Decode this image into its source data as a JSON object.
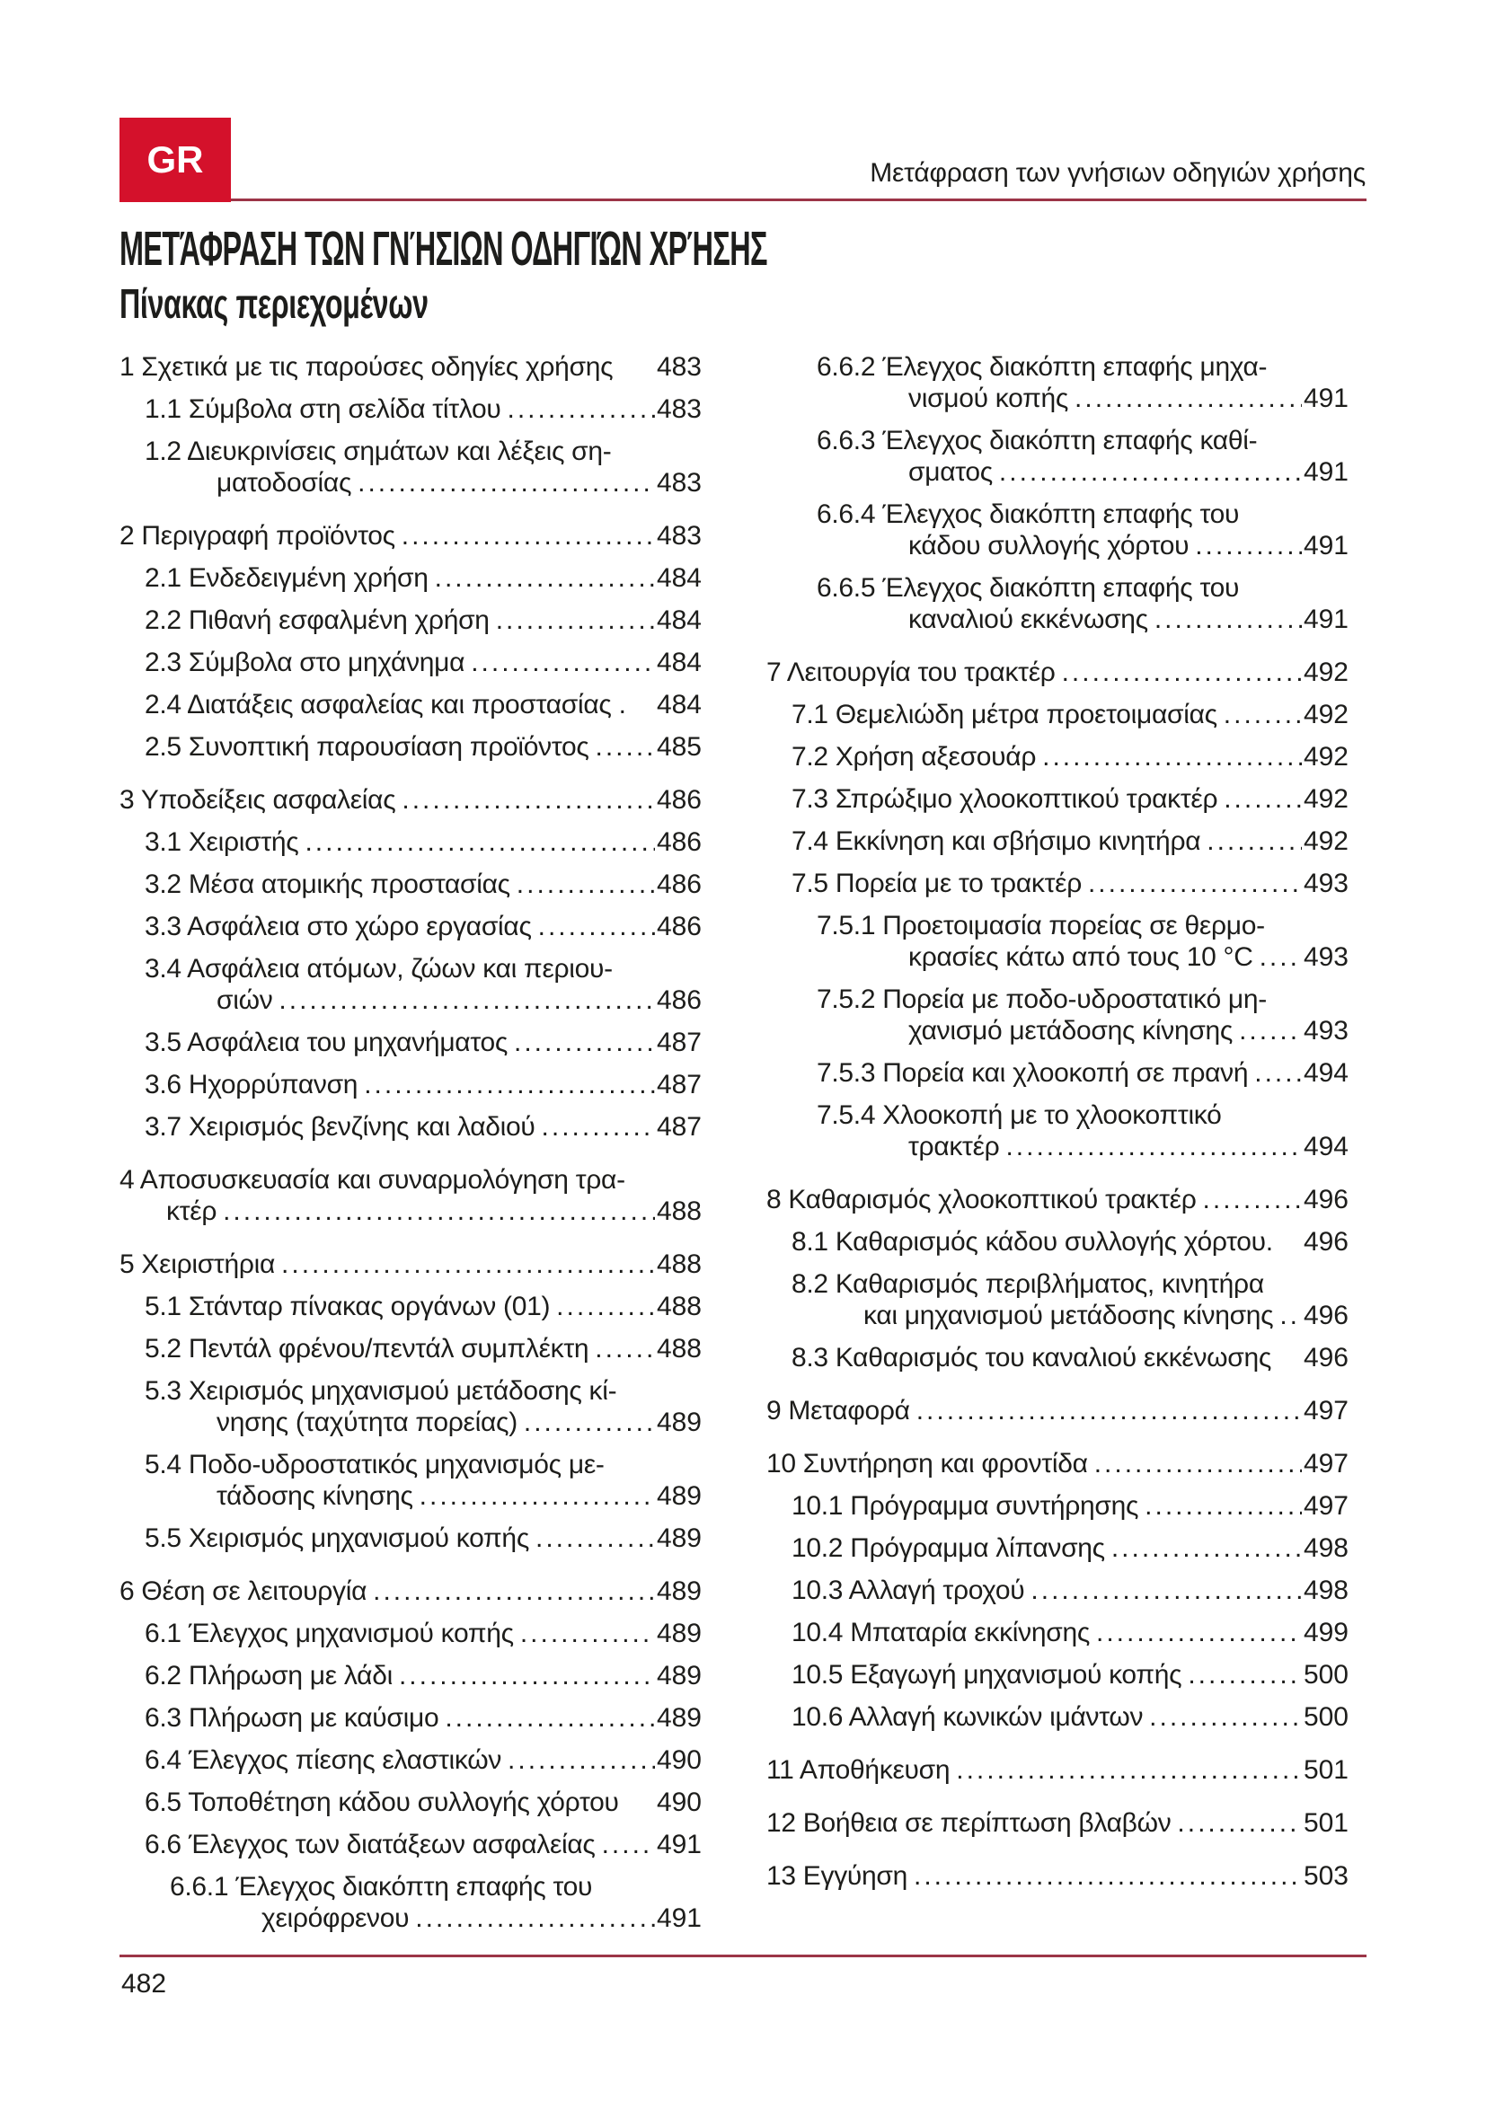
{
  "page": {
    "lang_badge": "GR",
    "header_right": "Μετάφραση των γνήσιων οδηγιών χρήσης",
    "title": "ΜΕΤΆΦΡΑΣΗ ΤΩΝ ΓΝΉΣΙΩΝ ΟΔΗΓΙΏΝ ΧΡΉΣΗΣ",
    "subtitle": "Πίνακας περιεχομένων",
    "page_number": "482",
    "accent_color": "#d4112b",
    "rule_color": "#9c3547"
  },
  "toc": {
    "left": [
      {
        "level": 1,
        "chapter": true,
        "lines": [
          {
            "text": "1 Σχετικά με τις παρούσες οδηγίες χρήσης",
            "page": "483",
            "leader": false
          }
        ]
      },
      {
        "level": 2,
        "lines": [
          {
            "text": "1.1 Σύμβολα στη σελίδα τίτλου",
            "page": "483",
            "leader": true
          }
        ]
      },
      {
        "level": 2,
        "lines": [
          {
            "text": "1.2 Διευκρινίσεις σημάτων και λέξεις ση-"
          },
          {
            "text": "ματοδοσίας",
            "page": "483",
            "leader": true
          }
        ]
      },
      {
        "level": 1,
        "chapter": true,
        "lines": [
          {
            "text": "2 Περιγραφή προϊόντος",
            "page": "483",
            "leader": true
          }
        ]
      },
      {
        "level": 2,
        "lines": [
          {
            "text": "2.1 Ενδεδειγμένη χρήση",
            "page": "484",
            "leader": true
          }
        ]
      },
      {
        "level": 2,
        "lines": [
          {
            "text": "2.2 Πιθανή εσφαλμένη χρήση",
            "page": "484",
            "leader": true
          }
        ]
      },
      {
        "level": 2,
        "lines": [
          {
            "text": "2.3 Σύμβολα στο μηχάνημα",
            "page": "484",
            "leader": true
          }
        ]
      },
      {
        "level": 2,
        "lines": [
          {
            "text": "2.4 Διατάξεις ασφαλείας και προστασίας .",
            "page": "484",
            "leader": false
          }
        ]
      },
      {
        "level": 2,
        "lines": [
          {
            "text": "2.5 Συνοπτική παρουσίαση προϊόντος",
            "page": "485",
            "leader": true
          }
        ]
      },
      {
        "level": 1,
        "chapter": true,
        "lines": [
          {
            "text": "3 Υποδείξεις ασφαλείας",
            "page": "486",
            "leader": true
          }
        ]
      },
      {
        "level": 2,
        "lines": [
          {
            "text": "3.1 Χειριστής",
            "page": "486",
            "leader": true
          }
        ]
      },
      {
        "level": 2,
        "lines": [
          {
            "text": "3.2 Μέσα ατομικής προστασίας",
            "page": "486",
            "leader": true
          }
        ]
      },
      {
        "level": 2,
        "lines": [
          {
            "text": "3.3 Ασφάλεια στο χώρο εργασίας",
            "page": "486",
            "leader": true
          }
        ]
      },
      {
        "level": 2,
        "lines": [
          {
            "text": "3.4 Ασφάλεια ατόμων, ζώων και περιου-"
          },
          {
            "text": "σιών",
            "page": "486",
            "leader": true
          }
        ]
      },
      {
        "level": 2,
        "lines": [
          {
            "text": "3.5 Ασφάλεια του μηχανήματος",
            "page": "487",
            "leader": true
          }
        ]
      },
      {
        "level": 2,
        "lines": [
          {
            "text": "3.6 Ηχορρύπανση",
            "page": "487",
            "leader": true
          }
        ]
      },
      {
        "level": 2,
        "lines": [
          {
            "text": "3.7 Χειρισμός βενζίνης και λαδιού",
            "page": "487",
            "leader": true
          }
        ]
      },
      {
        "level": 1,
        "chapter": true,
        "lines": [
          {
            "text": "4 Αποσυσκευασία και συναρμολόγηση τρα-"
          },
          {
            "text": "κτέρ",
            "page": "488",
            "leader": true
          }
        ]
      },
      {
        "level": 1,
        "chapter": true,
        "lines": [
          {
            "text": "5 Χειριστήρια",
            "page": "488",
            "leader": true
          }
        ]
      },
      {
        "level": 2,
        "lines": [
          {
            "text": "5.1 Στάνταρ πίνακας οργάνων (01)",
            "page": "488",
            "leader": true
          }
        ]
      },
      {
        "level": 2,
        "lines": [
          {
            "text": "5.2 Πεντάλ φρένου/πεντάλ συμπλέκτη",
            "page": "488",
            "leader": true
          }
        ]
      },
      {
        "level": 2,
        "lines": [
          {
            "text": "5.3 Χειρισμός μηχανισμού μετάδοσης κί-"
          },
          {
            "text": "νησης (ταχύτητα πορείας)",
            "page": "489",
            "leader": true
          }
        ]
      },
      {
        "level": 2,
        "lines": [
          {
            "text": "5.4 Ποδο-υδροστατικός μηχανισμός με-"
          },
          {
            "text": "τάδοσης κίνησης",
            "page": "489",
            "leader": true
          }
        ]
      },
      {
        "level": 2,
        "lines": [
          {
            "text": "5.5 Χειρισμός μηχανισμού κοπής",
            "page": "489",
            "leader": true
          }
        ]
      },
      {
        "level": 1,
        "chapter": true,
        "lines": [
          {
            "text": "6 Θέση σε λειτουργία",
            "page": "489",
            "leader": true
          }
        ]
      },
      {
        "level": 2,
        "lines": [
          {
            "text": "6.1 Έλεγχος μηχανισμού κοπής",
            "page": "489",
            "leader": true
          }
        ]
      },
      {
        "level": 2,
        "lines": [
          {
            "text": "6.2 Πλήρωση με λάδι",
            "page": "489",
            "leader": true
          }
        ]
      },
      {
        "level": 2,
        "lines": [
          {
            "text": "6.3 Πλήρωση με καύσιμο",
            "page": "489",
            "leader": true
          }
        ]
      },
      {
        "level": 2,
        "lines": [
          {
            "text": "6.4 Έλεγχος πίεσης ελαστικών",
            "page": "490",
            "leader": true
          }
        ]
      },
      {
        "level": 2,
        "lines": [
          {
            "text": "6.5 Τοποθέτηση κάδου συλλογής χόρτου",
            "page": "490",
            "leader": false
          }
        ]
      },
      {
        "level": 2,
        "lines": [
          {
            "text": "6.6 Έλεγχος των διατάξεων ασφαλείας",
            "page": "491",
            "leader": true
          }
        ]
      },
      {
        "level": 3,
        "lines": [
          {
            "text": "6.6.1 Έλεγχος διακόπτη επαφής του"
          },
          {
            "text": "χειρόφρενου",
            "page": "491",
            "leader": true
          }
        ]
      }
    ],
    "right": [
      {
        "level": 3,
        "lines": [
          {
            "text": "6.6.2 Έλεγχος διακόπτη επαφής μηχα-"
          },
          {
            "text": "νισμού κοπής",
            "page": "491",
            "leader": true
          }
        ]
      },
      {
        "level": 3,
        "lines": [
          {
            "text": "6.6.3 Έλεγχος διακόπτη επαφής καθί-"
          },
          {
            "text": "σματος",
            "page": "491",
            "leader": true
          }
        ]
      },
      {
        "level": 3,
        "lines": [
          {
            "text": "6.6.4 Έλεγχος διακόπτη επαφής του"
          },
          {
            "text": "κάδου συλλογής χόρτου",
            "page": "491",
            "leader": true
          }
        ]
      },
      {
        "level": 3,
        "lines": [
          {
            "text": "6.6.5 Έλεγχος διακόπτη επαφής του"
          },
          {
            "text": "καναλιού εκκένωσης",
            "page": "491",
            "leader": true
          }
        ]
      },
      {
        "level": 1,
        "chapter": true,
        "lines": [
          {
            "text": "7 Λειτουργία του τρακτέρ",
            "page": "492",
            "leader": true
          }
        ]
      },
      {
        "level": 2,
        "lines": [
          {
            "text": "7.1 Θεμελιώδη μέτρα προετοιμασίας",
            "page": "492",
            "leader": true
          }
        ]
      },
      {
        "level": 2,
        "lines": [
          {
            "text": "7.2 Χρήση αξεσουάρ",
            "page": "492",
            "leader": true
          }
        ]
      },
      {
        "level": 2,
        "lines": [
          {
            "text": "7.3 Σπρώξιμο χλοοκοπτικού τρακτέρ",
            "page": "492",
            "leader": true
          }
        ]
      },
      {
        "level": 2,
        "lines": [
          {
            "text": "7.4 Εκκίνηση και σβήσιμο κινητήρα",
            "page": "492",
            "leader": true
          }
        ]
      },
      {
        "level": 2,
        "lines": [
          {
            "text": "7.5 Πορεία με το τρακτέρ",
            "page": "493",
            "leader": true
          }
        ]
      },
      {
        "level": 3,
        "lines": [
          {
            "text": "7.5.1 Προετοιμασία πορείας σε θερμο-"
          },
          {
            "text": "κρασίες κάτω από τους 10 °C",
            "page": "493",
            "leader": true
          }
        ]
      },
      {
        "level": 3,
        "lines": [
          {
            "text": "7.5.2 Πορεία με ποδο-υδροστατικό μη-"
          },
          {
            "text": "χανισμό μετάδοσης κίνησης",
            "page": "493",
            "leader": true
          }
        ]
      },
      {
        "level": 3,
        "lines": [
          {
            "text": "7.5.3 Πορεία και χλοοκοπή σε πρανή",
            "page": "494",
            "leader": true
          }
        ]
      },
      {
        "level": 3,
        "lines": [
          {
            "text": "7.5.4 Χλοοκοπή με το χλοοκοπτικό"
          },
          {
            "text": "τρακτέρ",
            "page": "494",
            "leader": true
          }
        ]
      },
      {
        "level": 1,
        "chapter": true,
        "lines": [
          {
            "text": "8 Καθαρισμός χλοοκοπτικού τρακτέρ",
            "page": "496",
            "leader": true
          }
        ]
      },
      {
        "level": 2,
        "lines": [
          {
            "text": "8.1 Καθαρισμός κάδου συλλογής χόρτου.",
            "page": "496",
            "leader": false
          }
        ]
      },
      {
        "level": 2,
        "lines": [
          {
            "text": "8.2 Καθαρισμός περιβλήματος, κινητήρα"
          },
          {
            "text": "και μηχανισμού μετάδοσης κίνησης",
            "page": "496",
            "leader": true
          }
        ]
      },
      {
        "level": 2,
        "lines": [
          {
            "text": "8.3 Καθαρισμός του καναλιού εκκένωσης",
            "page": "496",
            "leader": false
          }
        ]
      },
      {
        "level": 1,
        "chapter": true,
        "lines": [
          {
            "text": "9 Μεταφορά",
            "page": "497",
            "leader": true
          }
        ]
      },
      {
        "level": 1,
        "chapter": true,
        "lines": [
          {
            "text": "10 Συντήρηση και φροντίδα",
            "page": "497",
            "leader": true
          }
        ]
      },
      {
        "level": 2,
        "lines": [
          {
            "text": "10.1 Πρόγραμμα συντήρησης",
            "page": "497",
            "leader": true
          }
        ]
      },
      {
        "level": 2,
        "lines": [
          {
            "text": "10.2 Πρόγραμμα λίπανσης",
            "page": "498",
            "leader": true
          }
        ]
      },
      {
        "level": 2,
        "lines": [
          {
            "text": "10.3 Αλλαγή τροχού",
            "page": "498",
            "leader": true
          }
        ]
      },
      {
        "level": 2,
        "lines": [
          {
            "text": "10.4 Μπαταρία εκκίνησης",
            "page": "499",
            "leader": true
          }
        ]
      },
      {
        "level": 2,
        "lines": [
          {
            "text": "10.5 Εξαγωγή μηχανισμού κοπής",
            "page": "500",
            "leader": true
          }
        ]
      },
      {
        "level": 2,
        "lines": [
          {
            "text": "10.6 Αλλαγή κωνικών ιμάντων",
            "page": "500",
            "leader": true
          }
        ]
      },
      {
        "level": 1,
        "chapter": true,
        "lines": [
          {
            "text": "11 Αποθήκευση",
            "page": "501",
            "leader": true
          }
        ]
      },
      {
        "level": 1,
        "chapter": true,
        "lines": [
          {
            "text": "12 Βοήθεια σε περίπτωση βλαβών",
            "page": "501",
            "leader": true
          }
        ]
      },
      {
        "level": 1,
        "chapter": true,
        "lines": [
          {
            "text": "13 Εγγύηση",
            "page": "503",
            "leader": true
          }
        ]
      }
    ]
  }
}
